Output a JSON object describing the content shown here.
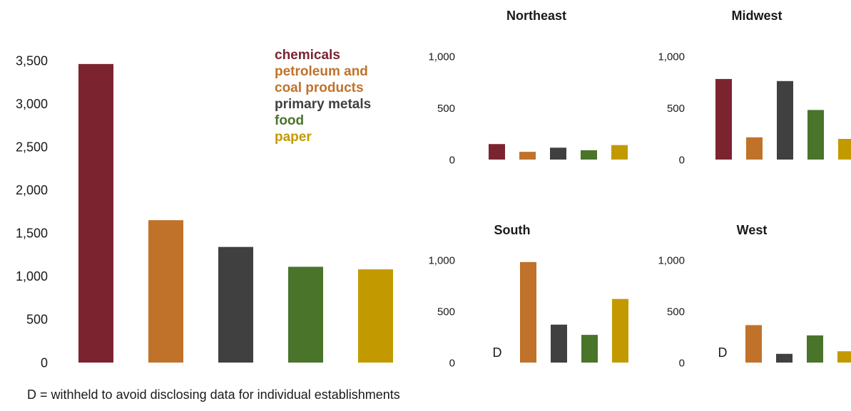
{
  "colors": {
    "chemicals": "#7b2430",
    "petroleum": "#c0722b",
    "metals": "#404040",
    "food": "#49742a",
    "paper": "#c29a00"
  },
  "legend": [
    {
      "label": "chemicals",
      "color_key": "chemicals"
    },
    {
      "label": "petroleum and",
      "color_key": "petroleum"
    },
    {
      "label": "coal products",
      "color_key": "petroleum"
    },
    {
      "label": "primary metals",
      "color_key": "metals"
    },
    {
      "label": "food",
      "color_key": "food"
    },
    {
      "label": "paper",
      "color_key": "paper"
    }
  ],
  "footnote": "D = withheld to avoid disclosing data for individual establishments",
  "chart_data": [
    {
      "type": "bar",
      "title": "",
      "categories": [
        "chemicals",
        "petroleum and coal products",
        "primary metals",
        "food",
        "paper"
      ],
      "values": [
        3460,
        1650,
        1340,
        1110,
        1080
      ],
      "ylim": [
        0,
        3500
      ],
      "yticks": [
        "0",
        "500",
        "1,000",
        "1,500",
        "2,000",
        "2,500",
        "3,000",
        "3,500"
      ],
      "grid": false
    },
    {
      "type": "bar",
      "title": "Northeast",
      "categories": [
        "chemicals",
        "petroleum and coal products",
        "primary metals",
        "food",
        "paper"
      ],
      "values": [
        150,
        75,
        115,
        90,
        140
      ],
      "ylim": [
        0,
        1000
      ],
      "yticks": [
        "0",
        "500",
        "1,000"
      ]
    },
    {
      "type": "bar",
      "title": "Midwest",
      "categories": [
        "chemicals",
        "petroleum and coal products",
        "primary metals",
        "food",
        "paper"
      ],
      "values": [
        780,
        215,
        760,
        480,
        200
      ],
      "ylim": [
        0,
        1000
      ],
      "yticks": [
        "0",
        "500",
        "1,000"
      ]
    },
    {
      "type": "bar",
      "title": "South",
      "categories": [
        "chemicals",
        "petroleum and coal products",
        "primary metals",
        "food",
        "paper"
      ],
      "values": [
        null,
        980,
        370,
        270,
        620
      ],
      "value_labels": [
        "D",
        null,
        null,
        null,
        null
      ],
      "ylim": [
        0,
        1000
      ],
      "yticks": [
        "0",
        "500",
        "1,000"
      ]
    },
    {
      "type": "bar",
      "title": "West",
      "categories": [
        "chemicals",
        "petroleum and coal products",
        "primary metals",
        "food",
        "paper"
      ],
      "values": [
        null,
        365,
        85,
        265,
        110
      ],
      "value_labels": [
        "D",
        null,
        null,
        null,
        null
      ],
      "ylim": [
        0,
        1000
      ],
      "yticks": [
        "0",
        "500",
        "1,000"
      ]
    }
  ]
}
